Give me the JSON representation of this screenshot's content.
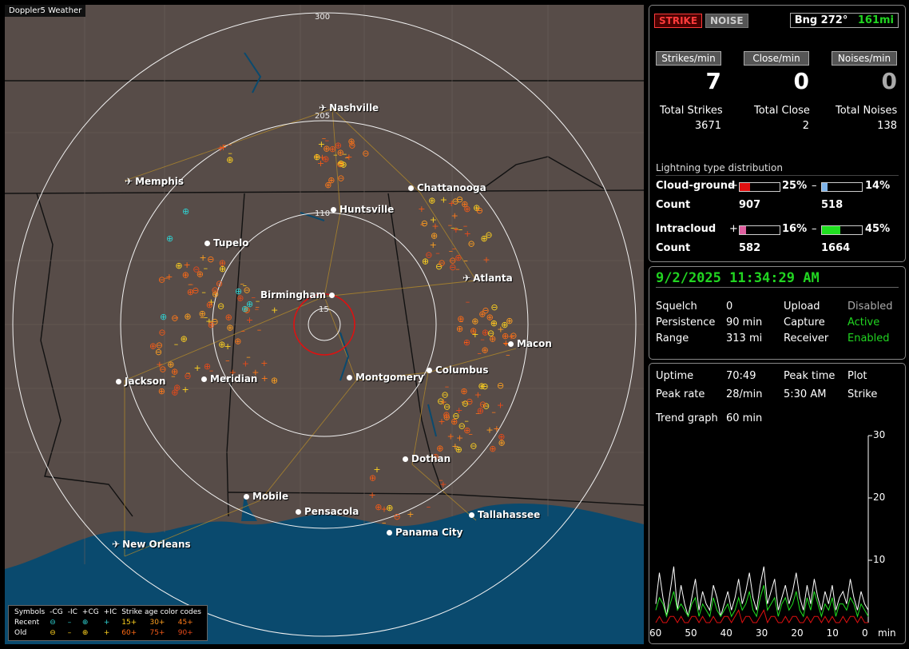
{
  "app": {
    "title": "Doppler5 Weather"
  },
  "map": {
    "ring_labels": [
      "300",
      "205",
      "110",
      "15"
    ],
    "cities": [
      {
        "name": "Nashville",
        "marker": "airport"
      },
      {
        "name": "Memphis",
        "marker": "airport"
      },
      {
        "name": "Chattanooga",
        "marker": "city"
      },
      {
        "name": "Huntsville",
        "marker": "city"
      },
      {
        "name": "Tupelo",
        "marker": "city"
      },
      {
        "name": "Atlanta",
        "marker": "airport"
      },
      {
        "name": "Birmingham",
        "marker": "city"
      },
      {
        "name": "Macon",
        "marker": "city"
      },
      {
        "name": "Jackson",
        "marker": "city"
      },
      {
        "name": "Meridian",
        "marker": "city"
      },
      {
        "name": "Montgomery",
        "marker": "city"
      },
      {
        "name": "Columbus",
        "marker": "city"
      },
      {
        "name": "Dothan",
        "marker": "city"
      },
      {
        "name": "Mobile",
        "marker": "city"
      },
      {
        "name": "Pensacola",
        "marker": "city"
      },
      {
        "name": "Tallahassee",
        "marker": "city"
      },
      {
        "name": "Panama City",
        "marker": "city"
      },
      {
        "name": "New Orleans",
        "marker": "airport"
      }
    ],
    "legend": {
      "symbols_label": "Symbols",
      "headers": [
        "-CG",
        "-IC",
        "+CG",
        "+IC"
      ],
      "age_title": "Strike age color codes",
      "rows": [
        {
          "label": "Recent",
          "ages": [
            "15+",
            "30+",
            "45+"
          ]
        },
        {
          "label": "Old",
          "ages": [
            "60+",
            "75+",
            "90+"
          ]
        }
      ],
      "age_colors": [
        "#ffd21f",
        "#ffa020",
        "#ff7a1a",
        "#ff6a14",
        "#f25a18",
        "#e84a1a"
      ]
    }
  },
  "counts": {
    "strike_button": "STRIKE",
    "noise_button": "NOISE",
    "bearing": "Bng 272°",
    "distance": "161mi",
    "strikes_min_label": "Strikes/min",
    "close_min_label": "Close/min",
    "noises_min_label": "Noises/min",
    "strikes_min": "7",
    "close_min": "0",
    "noises_min": "0",
    "total_strikes_label": "Total Strikes",
    "total_close_label": "Total Close",
    "total_noises_label": "Total Noises",
    "total_strikes": "3671",
    "total_close": "2",
    "total_noises": "138",
    "dist_title": "Lightning type distribution",
    "cloud_ground_label": "Cloud-ground",
    "intracloud_label": "Intracloud",
    "count_label": "Count",
    "plus": "+",
    "minus": "–",
    "cg_plus_pct": "25%",
    "cg_minus_pct": "14%",
    "cg_plus_count": "907",
    "cg_minus_count": "518",
    "ic_plus_pct": "16%",
    "ic_minus_pct": "45%",
    "ic_plus_count": "582",
    "ic_minus_count": "1664",
    "cg_plus_frac": 0.25,
    "cg_minus_frac": 0.14,
    "ic_plus_frac": 0.16,
    "ic_minus_frac": 0.45,
    "colors": {
      "cg_plus": "#e01010",
      "cg_minus": "#7fb4ea",
      "ic_plus": "#e060a0",
      "ic_minus": "#20e020"
    }
  },
  "status": {
    "datetime": "9/2/2025 11:34:29 AM",
    "squelch_label": "Squelch",
    "squelch": "0",
    "persistence_label": "Persistence",
    "persistence": "90 min",
    "range_label": "Range",
    "range": "313 mi",
    "upload_label": "Upload",
    "upload": "Disabled",
    "capture_label": "Capture",
    "capture": "Active",
    "receiver_label": "Receiver",
    "receiver": "Enabled"
  },
  "stats": {
    "uptime_label": "Uptime",
    "uptime": "70:49",
    "peak_time_label": "Peak time",
    "peak_time": "5:30 AM",
    "plot_label": "Plot",
    "plot": "Strike",
    "peak_rate_label": "Peak rate",
    "peak_rate": "28/min",
    "trend_label": "Trend graph",
    "trend": "60 min"
  },
  "chart_data": {
    "type": "line",
    "title": "",
    "xlabel": "min",
    "ylabel": "",
    "x_ticks": [
      "60",
      "50",
      "40",
      "30",
      "20",
      "10",
      "0"
    ],
    "y_ticks": [
      "30",
      "20",
      "10"
    ],
    "xlim": [
      60,
      0
    ],
    "ylim": [
      0,
      30
    ],
    "series": [
      {
        "color": "#ffffff",
        "values": [
          3,
          8,
          4,
          1,
          5,
          9,
          2,
          6,
          3,
          1,
          4,
          7,
          2,
          5,
          3,
          2,
          6,
          4,
          1,
          3,
          5,
          2,
          4,
          7,
          3,
          5,
          8,
          4,
          2,
          6,
          9,
          3,
          5,
          7,
          2,
          4,
          6,
          3,
          5,
          8,
          4,
          2,
          6,
          3,
          7,
          4,
          2,
          5,
          3,
          6,
          2,
          4,
          5,
          3,
          7,
          4,
          2,
          5,
          3,
          2
        ]
      },
      {
        "color": "#20e020",
        "values": [
          2,
          4,
          3,
          1,
          3,
          5,
          2,
          3,
          2,
          1,
          3,
          4,
          1,
          3,
          2,
          1,
          4,
          2,
          1,
          2,
          3,
          1,
          2,
          4,
          2,
          3,
          5,
          2,
          1,
          4,
          6,
          2,
          3,
          4,
          1,
          3,
          4,
          2,
          3,
          5,
          2,
          1,
          4,
          2,
          5,
          3,
          1,
          3,
          2,
          4,
          1,
          3,
          3,
          2,
          4,
          3,
          1,
          3,
          2,
          1
        ]
      },
      {
        "color": "#e01010",
        "values": [
          0,
          1,
          0,
          0,
          1,
          1,
          0,
          1,
          0,
          0,
          1,
          1,
          0,
          1,
          0,
          0,
          1,
          0,
          0,
          1,
          1,
          0,
          1,
          2,
          0,
          1,
          1,
          0,
          0,
          1,
          2,
          0,
          1,
          1,
          0,
          0,
          1,
          0,
          1,
          1,
          0,
          0,
          1,
          0,
          1,
          1,
          0,
          1,
          0,
          1,
          0,
          0,
          1,
          0,
          1,
          1,
          0,
          1,
          0,
          0
        ]
      }
    ]
  }
}
